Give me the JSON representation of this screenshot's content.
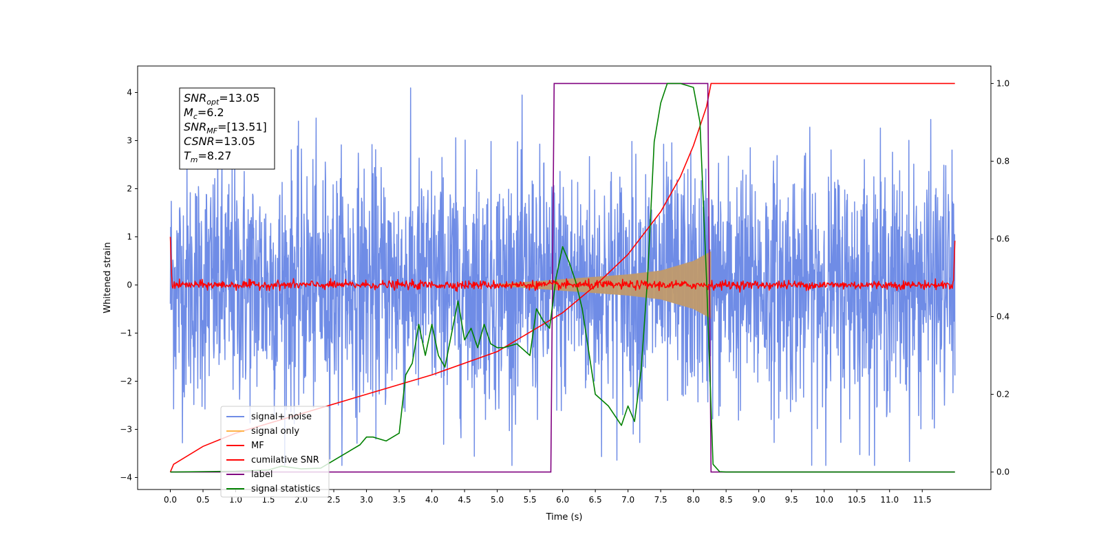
{
  "chart_data": {
    "type": "line",
    "xlabel": "Time (s)",
    "ylabel": "Whitened strain",
    "xlim": [
      -0.5,
      12.55
    ],
    "ylim": [
      -4.25,
      4.55
    ],
    "y2lim": [
      -0.045,
      1.045
    ],
    "xticks": [
      "0.0",
      "0.5",
      "1.0",
      "1.5",
      "2.0",
      "2.5",
      "3.0",
      "3.5",
      "4.0",
      "4.5",
      "5.0",
      "5.5",
      "6.0",
      "6.5",
      "7.0",
      "7.5",
      "8.0",
      "8.5",
      "9.0",
      "9.5",
      "10.0",
      "10.5",
      "11.0",
      "11.5"
    ],
    "yticks": [
      "4",
      "3",
      "2",
      "1",
      "0",
      "−1",
      "−2",
      "−3",
      "−4"
    ],
    "y2ticks": [
      "1.0",
      "0.8",
      "0.6",
      "0.4",
      "0.2",
      "0.0"
    ],
    "colors": {
      "noise": "#6f8ce6",
      "signal": "#ffb347",
      "mf": "#ff0000",
      "csnr": "#ff0000",
      "label": "#800080",
      "stats": "#008000"
    },
    "series": [
      {
        "name": "signal+ noise",
        "description": "whitened noisy strain, amplitude ~1.3 rms, 0 to 12 s"
      },
      {
        "name": "signal only",
        "envelope_x": [
          5.0,
          6.0,
          7.0,
          7.5,
          8.0,
          8.27
        ],
        "envelope_amp": [
          0.02,
          0.12,
          0.22,
          0.3,
          0.5,
          0.7
        ]
      },
      {
        "name": "MF",
        "description": "matched filter output ~0 ± 0.1, edge spikes to 1.0"
      },
      {
        "name": "cumilative SNR",
        "axis": "right",
        "x": [
          0.0,
          0.05,
          0.5,
          1.0,
          2.0,
          3.0,
          4.0,
          5.0,
          6.0,
          6.5,
          7.0,
          7.5,
          7.8,
          8.0,
          8.1,
          8.2,
          8.27,
          12.0
        ],
        "y": [
          0.0,
          0.02,
          0.066,
          0.1,
          0.15,
          0.2,
          0.25,
          0.31,
          0.41,
          0.48,
          0.56,
          0.67,
          0.76,
          0.84,
          0.89,
          0.94,
          1.0,
          1.0
        ]
      },
      {
        "name": "label",
        "axis": "right",
        "x": [
          0.0,
          5.82,
          5.87,
          8.22,
          8.27,
          12.0
        ],
        "y": [
          0.0,
          0.0,
          1.0,
          1.0,
          0.0,
          0.0
        ]
      },
      {
        "name": "signal statistics",
        "axis": "right",
        "x": [
          0.0,
          0.5,
          1.0,
          1.5,
          1.7,
          2.0,
          2.3,
          2.5,
          2.7,
          2.9,
          3.0,
          3.1,
          3.3,
          3.5,
          3.6,
          3.7,
          3.8,
          3.9,
          4.0,
          4.1,
          4.2,
          4.4,
          4.5,
          4.6,
          4.7,
          4.8,
          4.9,
          5.0,
          5.1,
          5.3,
          5.5,
          5.6,
          5.7,
          5.8,
          5.9,
          6.0,
          6.1,
          6.2,
          6.3,
          6.5,
          6.7,
          6.9,
          7.0,
          7.1,
          7.2,
          7.3,
          7.4,
          7.5,
          7.6,
          7.8,
          8.0,
          8.1,
          8.2,
          8.3,
          8.4,
          8.5,
          9.0,
          12.0
        ],
        "y": [
          0.0,
          0.001,
          0.002,
          0.005,
          0.015,
          0.008,
          0.01,
          0.03,
          0.05,
          0.07,
          0.09,
          0.09,
          0.08,
          0.1,
          0.25,
          0.28,
          0.38,
          0.3,
          0.38,
          0.3,
          0.27,
          0.44,
          0.34,
          0.37,
          0.32,
          0.38,
          0.33,
          0.32,
          0.32,
          0.33,
          0.3,
          0.42,
          0.39,
          0.37,
          0.5,
          0.58,
          0.54,
          0.49,
          0.42,
          0.2,
          0.17,
          0.12,
          0.17,
          0.13,
          0.26,
          0.5,
          0.85,
          0.95,
          1.0,
          1.0,
          0.99,
          0.9,
          0.5,
          0.02,
          0.001,
          0.0,
          0.0,
          0.0
        ]
      }
    ],
    "legend": {
      "placement": "lower-left",
      "entries": [
        "signal+ noise",
        "signal only",
        "MF",
        "cumilative SNR",
        "label",
        "signal statistics"
      ]
    },
    "annotation": {
      "lines": [
        {
          "sym": "SNR",
          "sub": "opt",
          "val": "=13.05"
        },
        {
          "sym": "M",
          "sub": "c",
          "val": "=6.2"
        },
        {
          "sym": "SNR",
          "sub": "MF",
          "val": "=[13.51]"
        },
        {
          "sym": "CSNR",
          "sub": "",
          "val": "=13.05"
        },
        {
          "sym": "T",
          "sub": "m",
          "val": "=8.27"
        }
      ]
    }
  }
}
